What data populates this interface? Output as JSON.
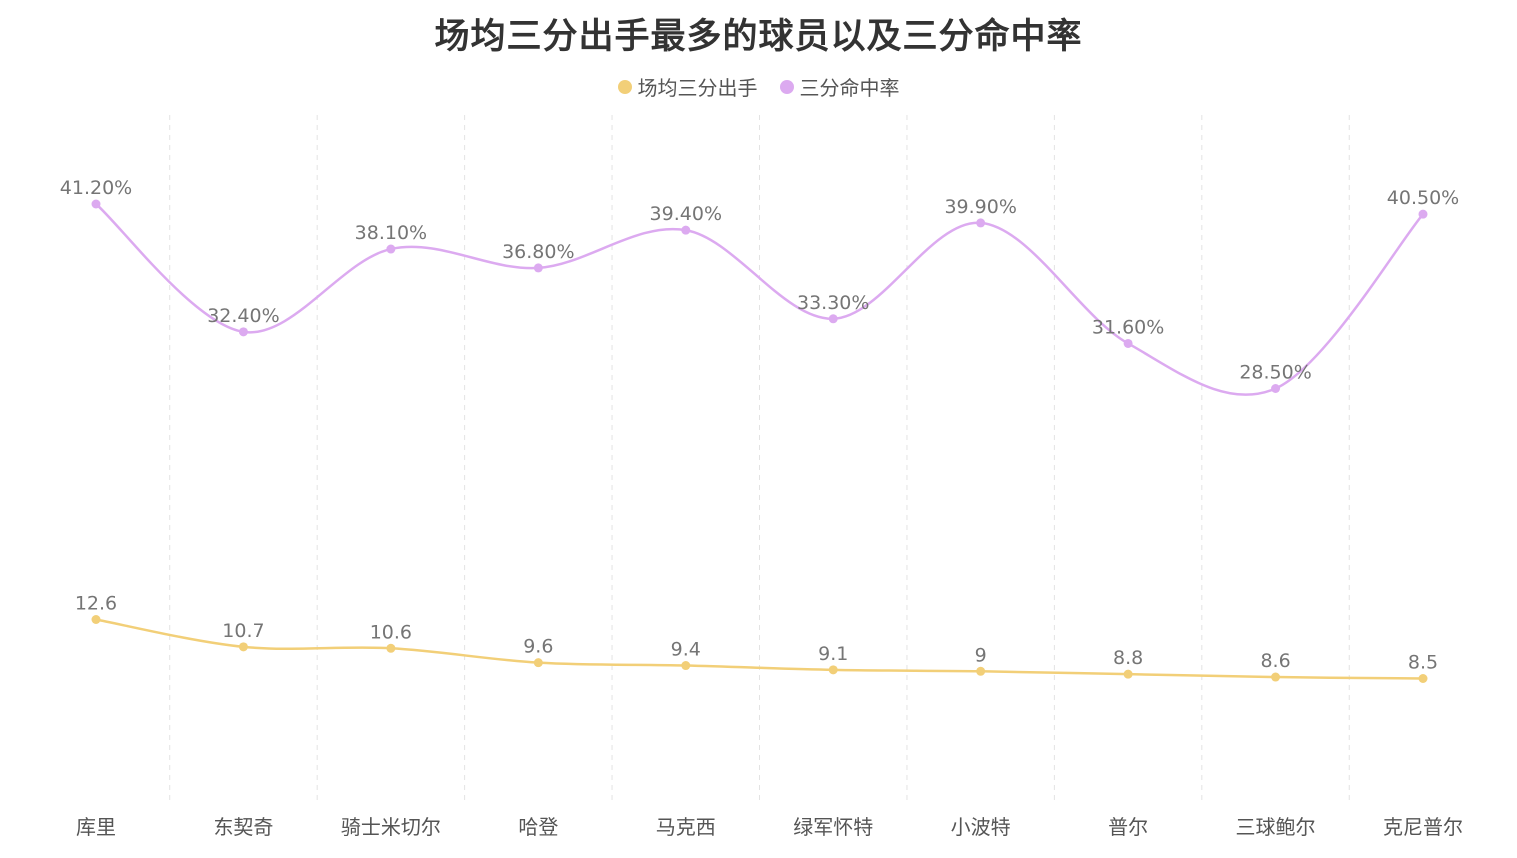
{
  "chart_data": {
    "type": "line",
    "title": "场均三分出手最多的球员以及三分命中率",
    "categories": [
      "库里",
      "东契奇",
      "骑士米切尔",
      "哈登",
      "马克西",
      "绿军怀特",
      "小波特",
      "普尔",
      "三球鲍尔",
      "克尼普尔"
    ],
    "series": [
      {
        "name": "场均三分出手",
        "color": "#f2cf78",
        "values": [
          12.6,
          10.7,
          10.6,
          9.6,
          9.4,
          9.1,
          9,
          8.8,
          8.6,
          8.5
        ],
        "labels": [
          "12.6",
          "10.7",
          "10.6",
          "9.6",
          "9.4",
          "9.1",
          "9",
          "8.8",
          "8.6",
          "8.5"
        ]
      },
      {
        "name": "三分命中率",
        "color": "#dcaaf0",
        "values": [
          41.2,
          32.4,
          38.1,
          36.8,
          39.4,
          33.3,
          39.9,
          31.6,
          28.5,
          40.5
        ],
        "labels": [
          "41.20%",
          "32.40%",
          "38.10%",
          "36.80%",
          "39.40%",
          "33.30%",
          "39.90%",
          "31.60%",
          "28.50%",
          "40.50%"
        ]
      }
    ],
    "legend_position": "top-center",
    "grid": "vertical-dashed",
    "smooth": true
  }
}
